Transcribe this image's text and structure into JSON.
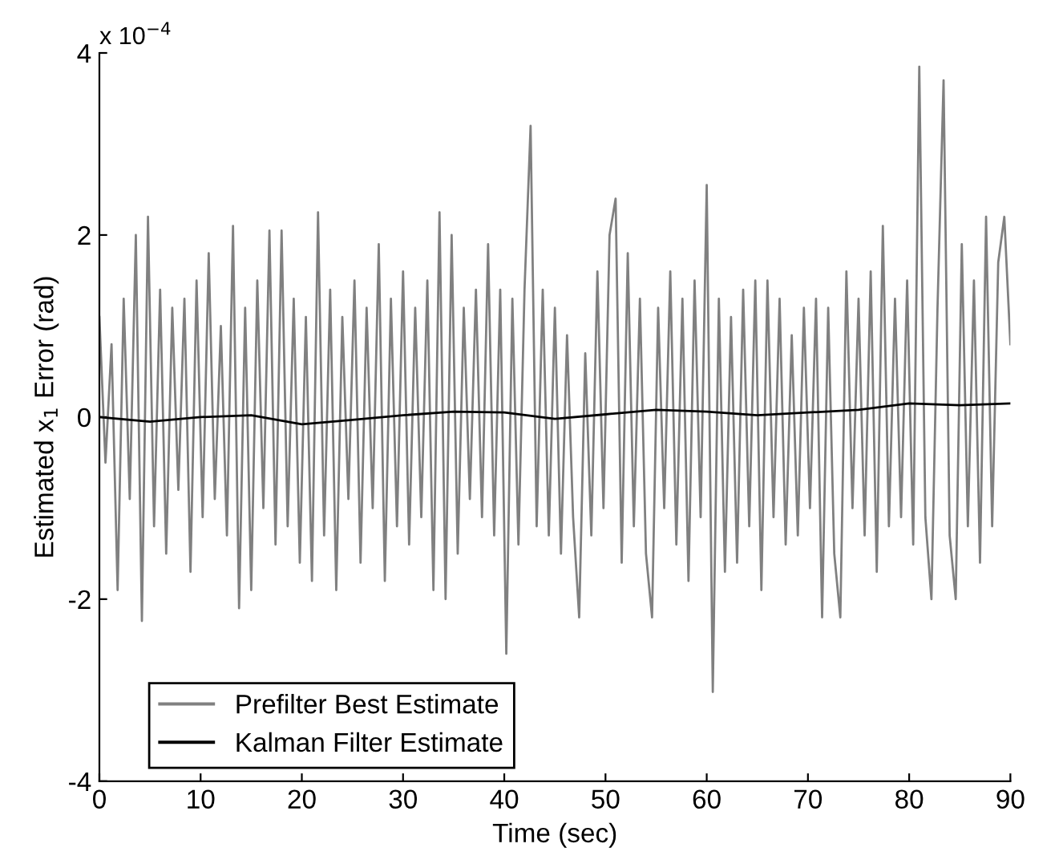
{
  "chart_data": {
    "type": "line",
    "xlabel": "Time (sec)",
    "ylabel": "Estimated x$_{1}$ Error (rad)",
    "annotations": [
      "x 10$^{−4}$"
    ],
    "xlim": [
      0,
      90
    ],
    "xticks": [
      0,
      10,
      20,
      30,
      40,
      50,
      60,
      70,
      80,
      90
    ],
    "ylim": [
      -4,
      4
    ],
    "yticks": [
      -4,
      -2,
      0,
      2,
      4
    ],
    "grid": false,
    "legend": "bottom left",
    "marker": "none",
    "line_style": "solid",
    "series": [
      {
        "name": "Prefilter Best Estimate",
        "color": "#808080",
        "x": [
          0,
          0.6,
          1.2,
          1.8,
          2.4,
          3,
          3.6,
          4.2,
          4.8,
          5.4,
          6,
          6.6,
          7.2,
          7.8,
          8.4,
          9,
          9.6,
          10.2,
          10.8,
          11.4,
          12,
          12.6,
          13.2,
          13.8,
          14.4,
          15,
          15.6,
          16.2,
          16.8,
          17.4,
          18,
          18.6,
          19.2,
          19.8,
          20.4,
          21,
          21.6,
          22.2,
          22.8,
          23.4,
          24,
          24.6,
          25.2,
          25.8,
          26.4,
          27,
          27.6,
          28.2,
          28.8,
          29.4,
          30,
          30.6,
          31.2,
          31.8,
          32.4,
          33,
          33.6,
          34.2,
          34.8,
          35.4,
          36,
          36.6,
          37.2,
          37.8,
          38.4,
          39,
          39.6,
          40.2,
          40.8,
          41.4,
          42,
          42.6,
          43.2,
          43.8,
          44.4,
          45,
          45.6,
          46.2,
          46.8,
          47.4,
          48,
          48.6,
          49.2,
          49.8,
          50.4,
          51,
          51.6,
          52.2,
          52.8,
          53.4,
          54,
          54.6,
          55.2,
          55.8,
          56.4,
          57,
          57.6,
          58.2,
          58.8,
          59.4,
          60,
          60.6,
          61.2,
          61.8,
          62.4,
          63,
          63.6,
          64.2,
          64.8,
          65.4,
          66,
          66.6,
          67.2,
          67.8,
          68.4,
          69,
          69.6,
          70.2,
          70.8,
          71.4,
          72,
          72.6,
          73.2,
          73.8,
          74.4,
          75,
          75.6,
          76.2,
          76.8,
          77.4,
          78,
          78.6,
          79.2,
          79.8,
          80.4,
          81,
          81.6,
          82.2,
          82.8,
          83.4,
          84,
          84.6,
          85.2,
          85.8,
          86.4,
          87,
          87.6,
          88.2,
          88.8,
          89.4,
          90
        ],
        "values": [
          1.1,
          -0.5,
          0.8,
          -1.9,
          1.3,
          -0.9,
          2.0,
          -2.24,
          2.2,
          -1.2,
          1.4,
          -1.5,
          1.2,
          -0.8,
          1.3,
          -1.7,
          1.5,
          -1.1,
          1.8,
          -0.9,
          1.0,
          -1.3,
          2.1,
          -2.1,
          1.2,
          -1.9,
          1.5,
          -1.0,
          2.05,
          -1.4,
          2.05,
          -1.2,
          1.3,
          -1.6,
          1.1,
          -1.8,
          2.25,
          -1.3,
          1.4,
          -1.9,
          1.1,
          -0.9,
          1.5,
          -1.6,
          1.2,
          -1.0,
          1.9,
          -1.8,
          1.3,
          -1.2,
          1.6,
          -1.4,
          1.2,
          -1.1,
          1.5,
          -1.9,
          2.25,
          -2.0,
          2.0,
          -1.5,
          1.2,
          -0.9,
          1.4,
          -1.1,
          1.9,
          -1.3,
          1.4,
          -2.6,
          1.3,
          -1.4,
          1.4,
          3.2,
          -1.2,
          1.4,
          -1.3,
          1.2,
          -1.5,
          0.9,
          -1.1,
          -2.2,
          0.7,
          -1.3,
          1.6,
          -1.0,
          2.0,
          2.4,
          -1.6,
          1.8,
          -1.2,
          1.3,
          -1.5,
          -2.2,
          1.2,
          -1.0,
          1.6,
          -1.4,
          1.3,
          -1.8,
          1.5,
          -1.1,
          2.55,
          -3.02,
          1.3,
          -1.7,
          1.1,
          -1.6,
          1.4,
          -1.2,
          1.5,
          -1.9,
          1.5,
          -1.1,
          1.3,
          -1.4,
          0.9,
          -1.3,
          1.2,
          -1.0,
          1.3,
          -2.2,
          1.2,
          -1.5,
          -2.2,
          1.6,
          -1.0,
          1.3,
          -1.3,
          1.6,
          -1.7,
          2.1,
          -1.2,
          1.3,
          -1.1,
          1.5,
          -1.4,
          3.85,
          -1.1,
          -2.0,
          1.2,
          3.7,
          -1.3,
          -2.0,
          1.9,
          -1.2,
          1.5,
          -1.6,
          2.2,
          -1.2,
          1.7,
          2.2,
          0.8
        ]
      },
      {
        "name": "Kalman Filter Estimate",
        "color": "#000000",
        "x": [
          0,
          5,
          10,
          15,
          20,
          25,
          30,
          35,
          40,
          45,
          50,
          55,
          60,
          65,
          70,
          75,
          80,
          85,
          90
        ],
        "values": [
          0.0,
          -0.05,
          0.0,
          0.02,
          -0.08,
          -0.03,
          0.02,
          0.06,
          0.05,
          -0.02,
          0.03,
          0.08,
          0.06,
          0.02,
          0.05,
          0.08,
          0.15,
          0.13,
          0.15
        ]
      }
    ]
  }
}
